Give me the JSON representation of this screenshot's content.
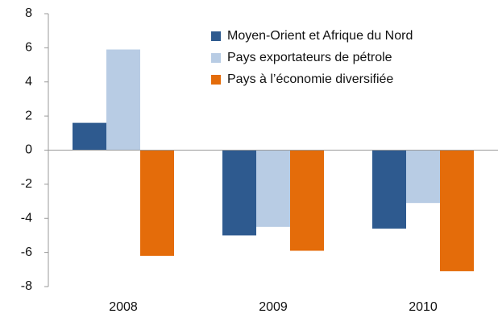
{
  "chart_data": {
    "type": "bar",
    "categories": [
      "2008",
      "2009",
      "2010"
    ],
    "series": [
      {
        "name": "Moyen-Orient et Afrique du Nord",
        "color": "#2e5a8f",
        "values": [
          1.6,
          -5.0,
          -4.6
        ]
      },
      {
        "name": "Pays exportateurs de pétrole",
        "color": "#b8cce4",
        "values": [
          5.9,
          -4.5,
          -3.1
        ]
      },
      {
        "name": "Pays à l’économie diversifiée",
        "color": "#e46c0a",
        "values": [
          -6.2,
          -5.9,
          -7.1
        ]
      }
    ],
    "ylim": [
      -8,
      8
    ],
    "yticks": [
      -8,
      -6,
      -4,
      -2,
      0,
      2,
      4,
      6,
      8
    ],
    "grid": false,
    "legend": "top-right"
  }
}
